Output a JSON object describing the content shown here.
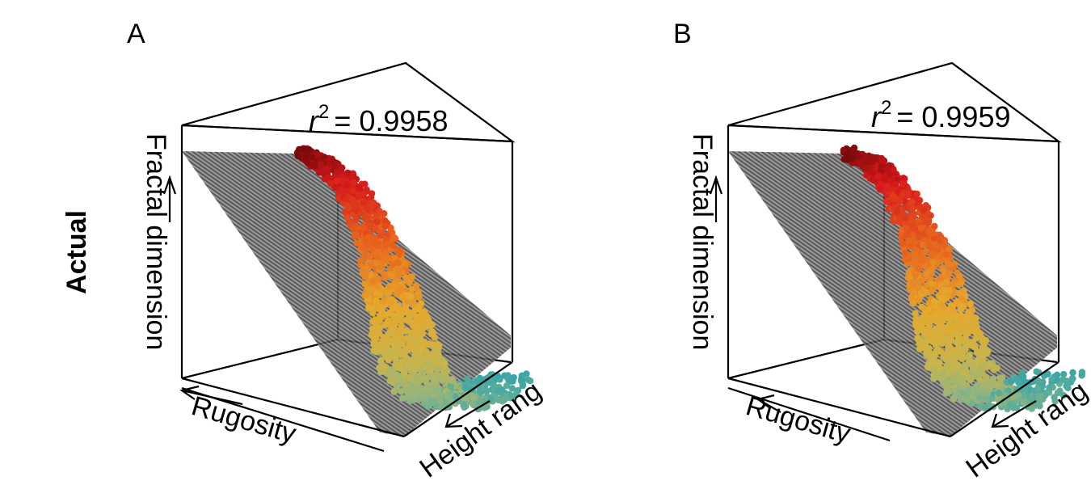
{
  "row_label": "Actual",
  "chart_data": [
    {
      "type": "scatter",
      "panel_label": "A",
      "annotation": "= 0.9958",
      "annotation_symbol": "r",
      "annotation_superscript": "2",
      "r_squared": 0.9958,
      "axes": {
        "x": "Rugosity",
        "y": "Height rang",
        "z": "Fractal dimension"
      },
      "series_colors": [
        "#7a0a0a",
        "#d7191c",
        "#e8641d",
        "#e6a82b",
        "#c9b54a",
        "#8fb583",
        "#3aa6a8"
      ],
      "plane_color": "#555555",
      "legend": "none",
      "grid": false
    },
    {
      "type": "scatter",
      "panel_label": "B",
      "annotation": "= 0.9959",
      "annotation_symbol": "r",
      "annotation_superscript": "2",
      "r_squared": 0.9959,
      "axes": {
        "x": "Rugosity",
        "y": "Height rang",
        "z": "Fractal dimension"
      },
      "series_colors": [
        "#7a0a0a",
        "#d7191c",
        "#e8641d",
        "#e6a82b",
        "#c9b54a",
        "#8fb583",
        "#3aa6a8"
      ],
      "plane_color": "#555555",
      "legend": "none",
      "grid": false
    }
  ]
}
